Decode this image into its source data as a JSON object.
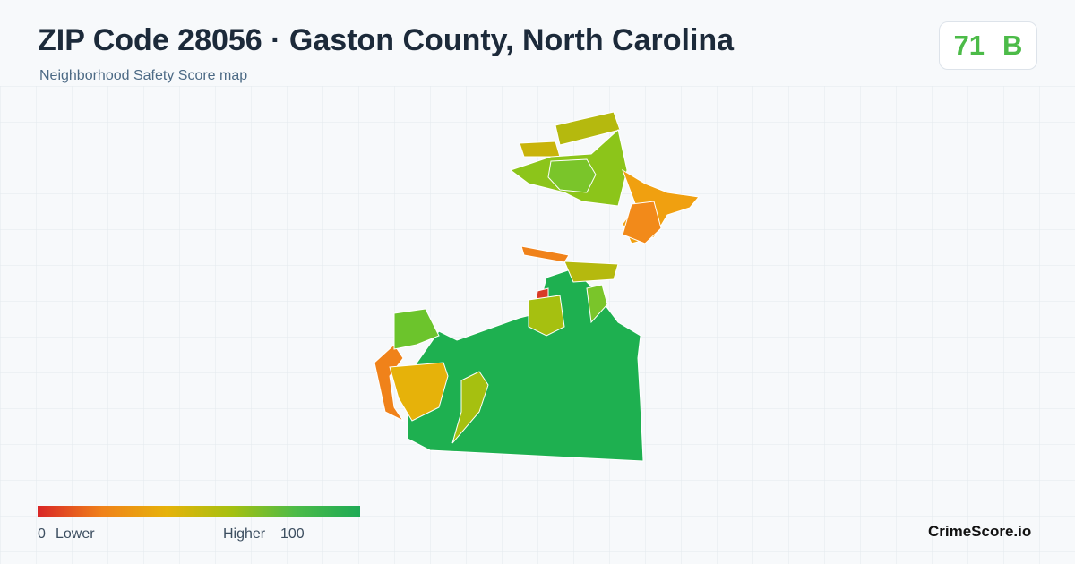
{
  "header": {
    "title": "ZIP Code 28056 · Gaston County, North Carolina",
    "subtitle": "Neighborhood Safety Score map"
  },
  "score": {
    "value": 71,
    "grade": "B"
  },
  "legend": {
    "min": 0,
    "min_label": "Lower",
    "max_label": "Higher",
    "max": 100
  },
  "brand": "CrimeScore.io"
}
